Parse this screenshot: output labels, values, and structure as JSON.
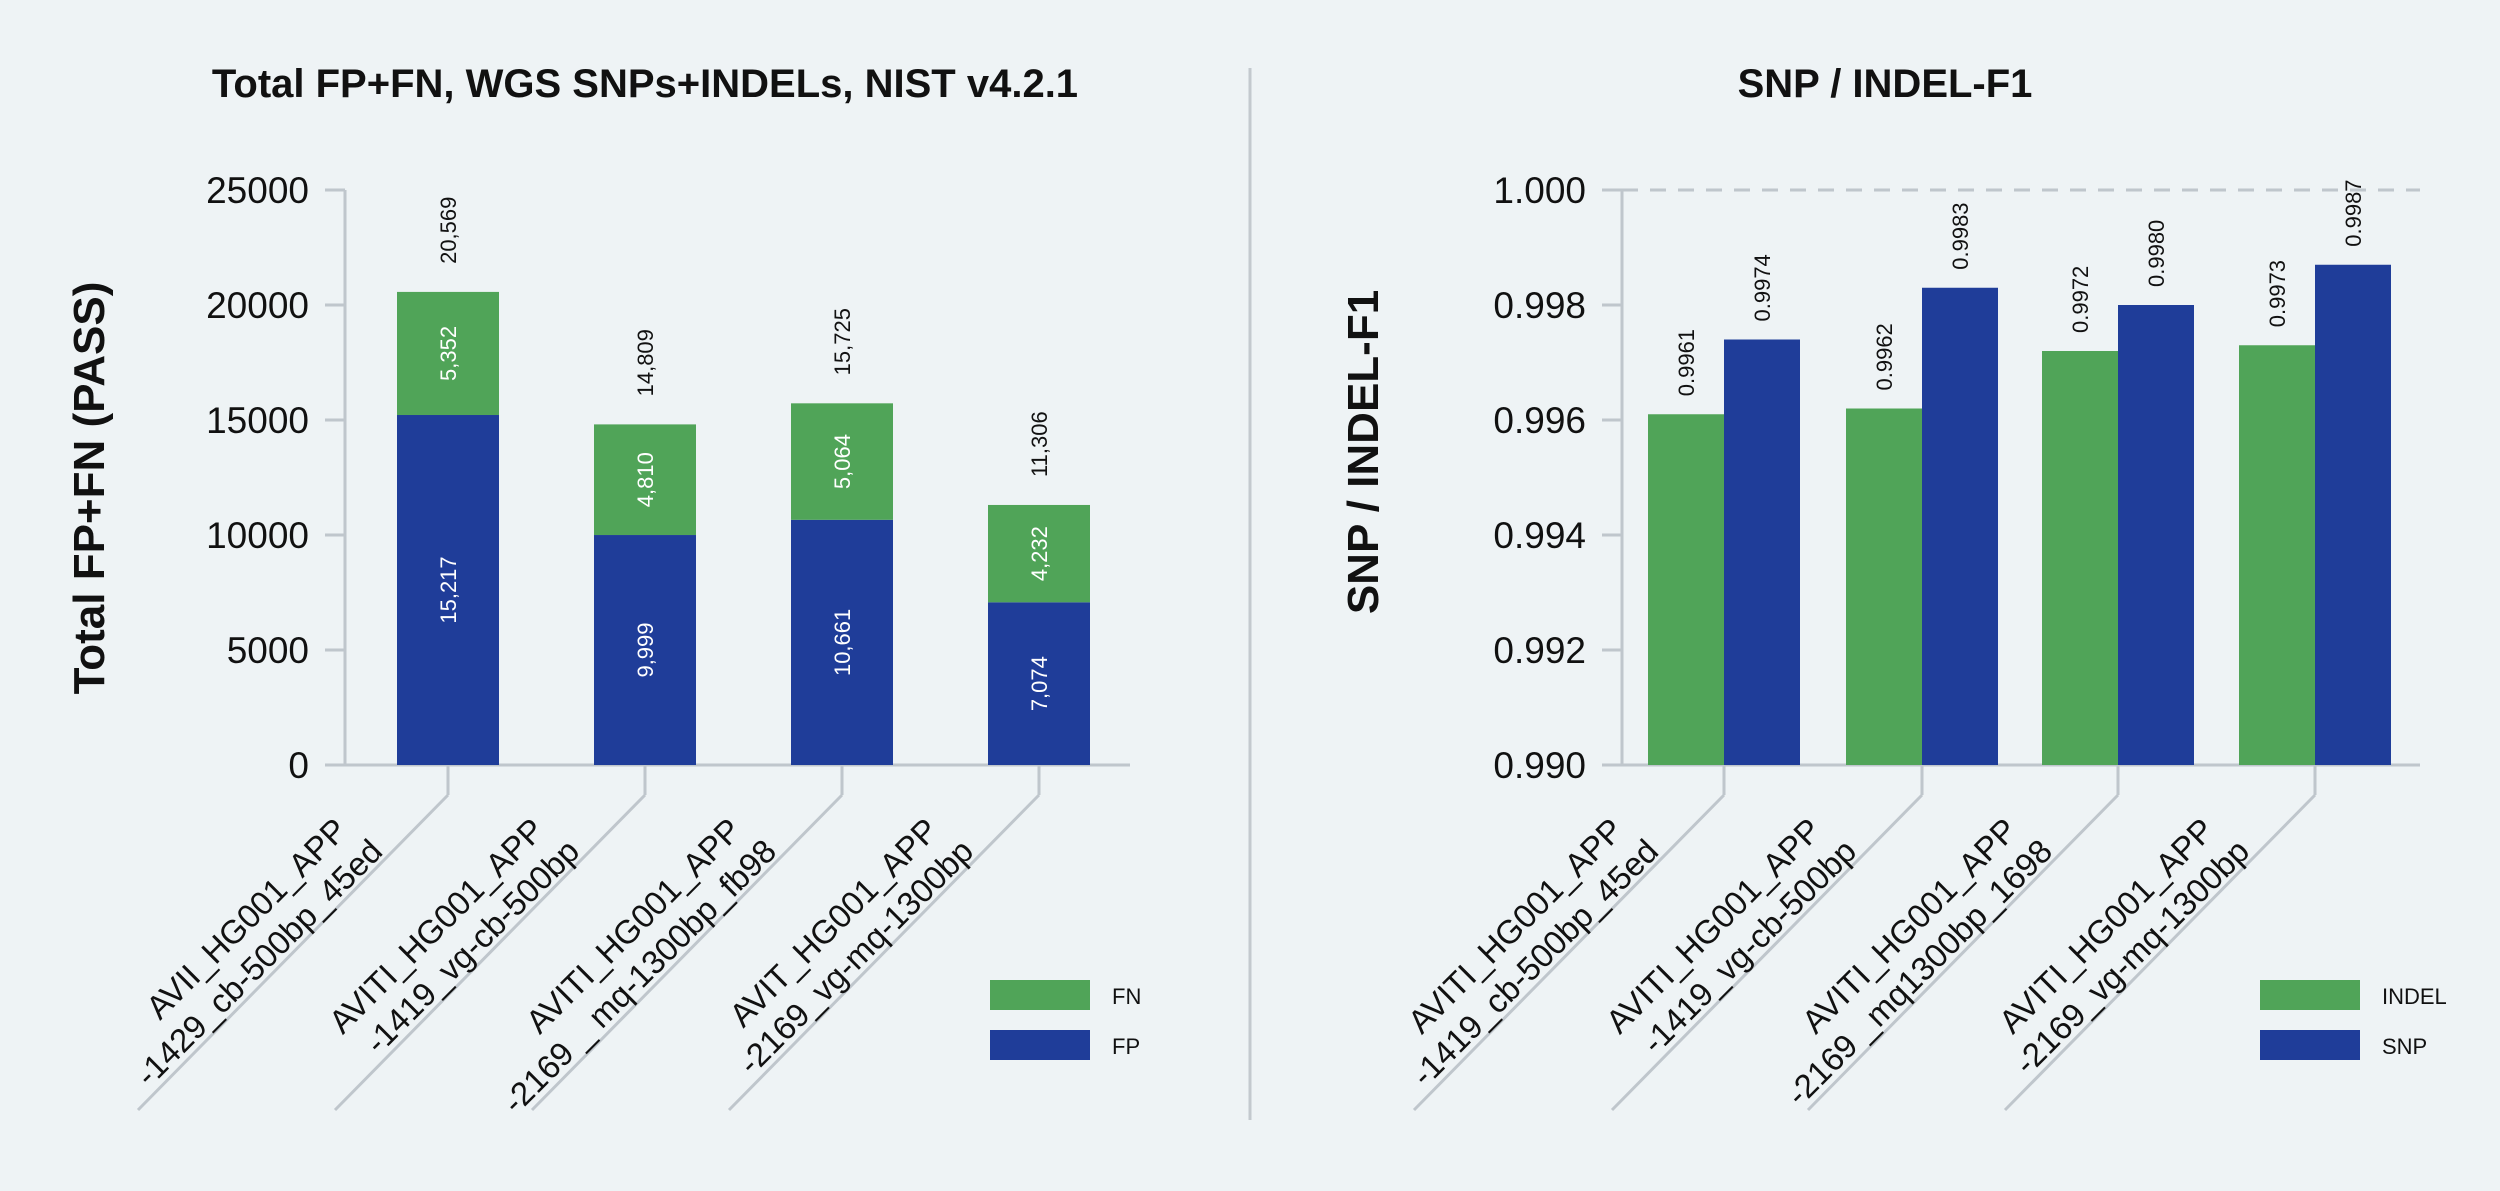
{
  "colors": {
    "green": "#50a458",
    "blue": "#1f3d99",
    "axis": "#bfc6cc",
    "divider": "#c3c9ce"
  },
  "chart_data": [
    {
      "type": "bar",
      "stacked": true,
      "title": "Total FP+FN, WGS SNPs+INDELs, NIST v4.2.1",
      "ylabel": "Total FP+FN  (PASS)",
      "ylim": [
        0,
        25000
      ],
      "yticks": [
        "0",
        "5000",
        "10000",
        "15000",
        "20000",
        "25000"
      ],
      "categories": [
        [
          "AVII_HG001_APP",
          "-1429_cb-500bp_45ed"
        ],
        [
          "AVITI_HG001_APP",
          "-1419_vg-cb-500bp"
        ],
        [
          "AVITI_HG001_APP",
          "-2169 _ mq-1300bp_fb98"
        ],
        [
          "AVIT_HG001_APP",
          "-2169_vg-mq-1300bp"
        ]
      ],
      "series": [
        {
          "name": "FP",
          "color": "#1f3d99",
          "values": [
            15217,
            9999,
            10661,
            7074
          ],
          "labels": [
            "15,217",
            "9,999",
            "10,661",
            "7,074"
          ]
        },
        {
          "name": "FN",
          "color": "#50a458",
          "values": [
            5352,
            4810,
            5064,
            4232
          ],
          "labels": [
            "5,352",
            "4,810",
            "5,064",
            "4,232"
          ]
        }
      ],
      "totals": [
        20569,
        14809,
        15725,
        11306
      ],
      "total_labels": [
        "20,569",
        "14,809",
        "15,725",
        "11,306"
      ],
      "legend": [
        {
          "name": "FN",
          "color": "#50a458"
        },
        {
          "name": "FP",
          "color": "#1f3d99"
        }
      ],
      "legend_position": "bottom-right",
      "grid": false
    },
    {
      "type": "bar",
      "stacked": false,
      "title": "SNP / INDEL-F1",
      "ylabel": "SNP / INDEL-F1",
      "ylim": [
        0.99,
        1.0
      ],
      "yticks": [
        "0.990",
        "0.992",
        "0.994",
        "0.996",
        "0.998",
        "1.000"
      ],
      "reference_line": 1.0,
      "categories": [
        [
          "AVITI_HG001_APP",
          "-1419_cb-500bp_45ed"
        ],
        [
          "AVITI_HG001_APP",
          "-1419_vg-cb-500bp"
        ],
        [
          "AVITI_HG001_APP",
          "-2169 _mq1300bp_1698"
        ],
        [
          "AVITI_HG001_APP",
          "-2169_vg-mq-1300bp"
        ]
      ],
      "series": [
        {
          "name": "INDEL",
          "color": "#50a458",
          "values": [
            0.9961,
            0.9962,
            0.9972,
            0.9973
          ],
          "labels": [
            "0.9961",
            "0.9962",
            "0.9972",
            "0.9973"
          ]
        },
        {
          "name": "SNP",
          "color": "#1f3d99",
          "values": [
            0.9974,
            0.9983,
            0.998,
            0.9987
          ],
          "labels": [
            "0.9974",
            "0.9983",
            "0.9980",
            "0.9987"
          ]
        }
      ],
      "legend": [
        {
          "name": "INDEL",
          "color": "#50a458"
        },
        {
          "name": "SNP",
          "color": "#1f3d99"
        }
      ],
      "legend_position": "bottom-right",
      "grid": false
    }
  ]
}
